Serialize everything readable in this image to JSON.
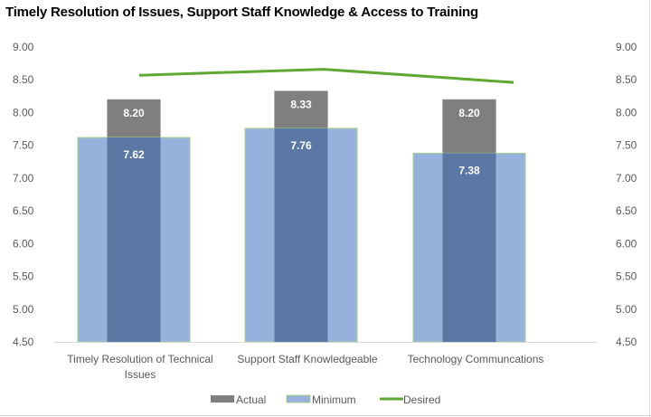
{
  "chart_data": {
    "type": "bar",
    "title": "Timely Resolution of Issues, Support Staff Knowledge & Access to Training",
    "categories": [
      "Timely Resolution of Technical Issues",
      "Support Staff Knowledgeable",
      "Technology Communcations"
    ],
    "category_lines": [
      [
        "Timely Resolution of Technical",
        "Issues"
      ],
      [
        "Support Staff Knowledgeable"
      ],
      [
        "Technology Communcations"
      ]
    ],
    "series": [
      {
        "name": "Actual",
        "type": "bar",
        "color": "#7f7f7f",
        "values": [
          8.2,
          8.33,
          8.2
        ]
      },
      {
        "name": "Minimum",
        "type": "bar",
        "color": "#95b1dc",
        "values": [
          7.62,
          7.76,
          7.38
        ]
      },
      {
        "name": "Desired",
        "type": "line",
        "color": "#5fa832",
        "values": [
          8.57,
          8.66,
          8.46
        ]
      }
    ],
    "data_labels": {
      "Actual": [
        "8.20",
        "8.33",
        "8.20"
      ],
      "Minimum": [
        "7.62",
        "7.76",
        "7.38"
      ]
    },
    "xlabel": "",
    "ylabel": "",
    "ylim": [
      4.5,
      9.0
    ],
    "y_ticks": [
      "9.00",
      "8.50",
      "8.00",
      "7.50",
      "7.00",
      "6.50",
      "6.00",
      "5.50",
      "5.00",
      "4.50"
    ],
    "secondary_y_ticks": [
      "9.00",
      "8.50",
      "8.00",
      "7.50",
      "7.00",
      "6.50",
      "6.00",
      "5.50",
      "5.00",
      "4.50"
    ],
    "grid": false,
    "legend_position": "bottom",
    "legend": [
      "Actual",
      "Minimum",
      "Desired"
    ]
  }
}
